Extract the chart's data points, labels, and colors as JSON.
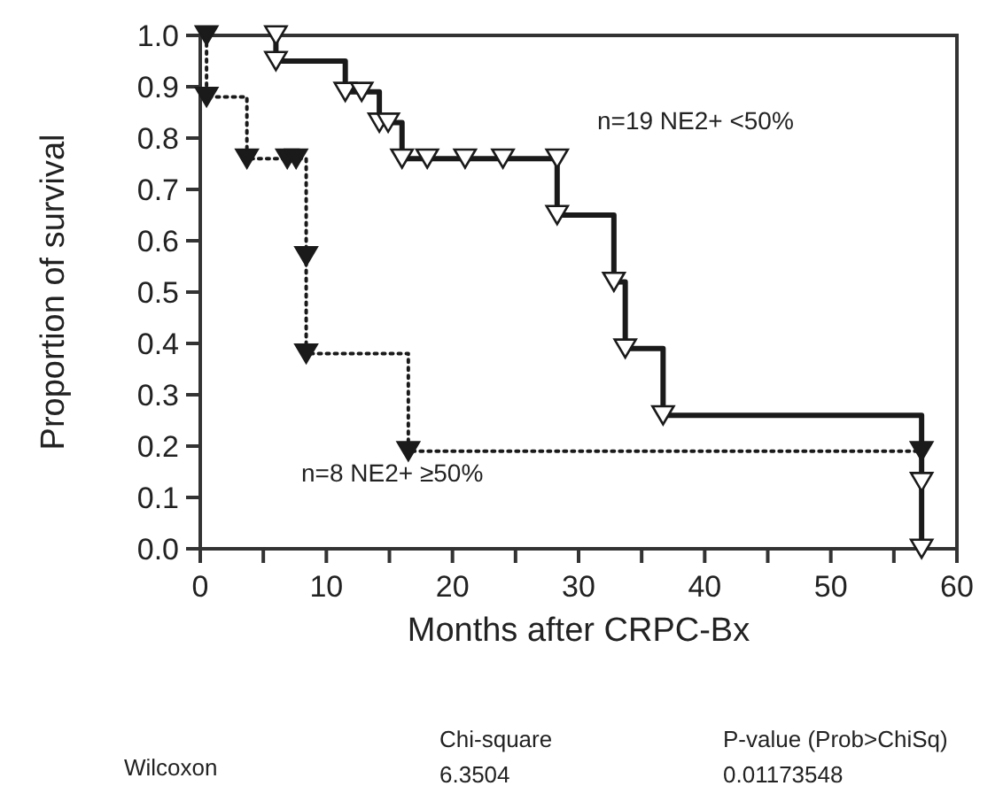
{
  "chart_data": {
    "type": "step",
    "xlabel": "Months after CRPC-Bx",
    "ylabel": "Proportion of survival",
    "xlim": [
      0,
      60
    ],
    "ylim": [
      0,
      1
    ],
    "xticks": [
      0,
      {
        "value": 5,
        "label": null
      },
      10,
      {
        "value": 15,
        "label": null
      },
      20,
      {
        "value": 25,
        "label": null
      },
      30,
      {
        "value": 35,
        "label": null
      },
      40,
      {
        "value": 45,
        "label": null
      },
      50,
      {
        "value": 55,
        "label": null
      },
      60
    ],
    "yticks": [
      {
        "value": 0,
        "label": "0.0"
      },
      {
        "value": 0.1,
        "label": "0.1"
      },
      {
        "value": 0.2,
        "label": "0.2"
      },
      {
        "value": 0.3,
        "label": "0.3"
      },
      {
        "value": 0.4,
        "label": "0.4"
      },
      {
        "value": 0.5,
        "label": "0.5"
      },
      {
        "value": 0.6,
        "label": "0.6"
      },
      {
        "value": 0.7,
        "label": "0.7"
      },
      {
        "value": 0.8,
        "label": "0.8"
      },
      {
        "value": 0.9,
        "label": "0.9"
      },
      {
        "value": 1,
        "label": "1.0"
      }
    ],
    "grid": false,
    "marker": "triangle",
    "series": [
      {
        "name": "n=19 NE2+ <50%",
        "color": "#1a1a1a",
        "line_style": "solid",
        "x": [
          6.0,
          6.0,
          11.5,
          12.8,
          14.2,
          14.9,
          16.0,
          18.0,
          21.0,
          24.0,
          28.3,
          28.3,
          32.8,
          33.7,
          36.7,
          57.2,
          57.2
        ],
        "values": [
          1.0,
          0.95,
          0.89,
          0.89,
          0.83,
          0.83,
          0.76,
          0.76,
          0.76,
          0.76,
          0.76,
          0.65,
          0.52,
          0.39,
          0.26,
          0.13,
          0
        ]
      },
      {
        "name": "n=8 NE2+ ≥50%",
        "color": "#1a1a1a",
        "line_style": "dotted",
        "x": [
          0.5,
          0.5,
          3.7,
          6.9,
          7.6,
          8.4,
          8.4,
          16.5,
          57.2
        ],
        "values": [
          1.0,
          0.88,
          0.76,
          0.76,
          0.76,
          0.57,
          0.38,
          0.19,
          0.19
        ]
      }
    ],
    "annotations": [
      "Wilcoxon",
      "Chi-square",
      "6.3504",
      "P-value (Prob>ChiSq)",
      "0.01173548"
    ]
  }
}
